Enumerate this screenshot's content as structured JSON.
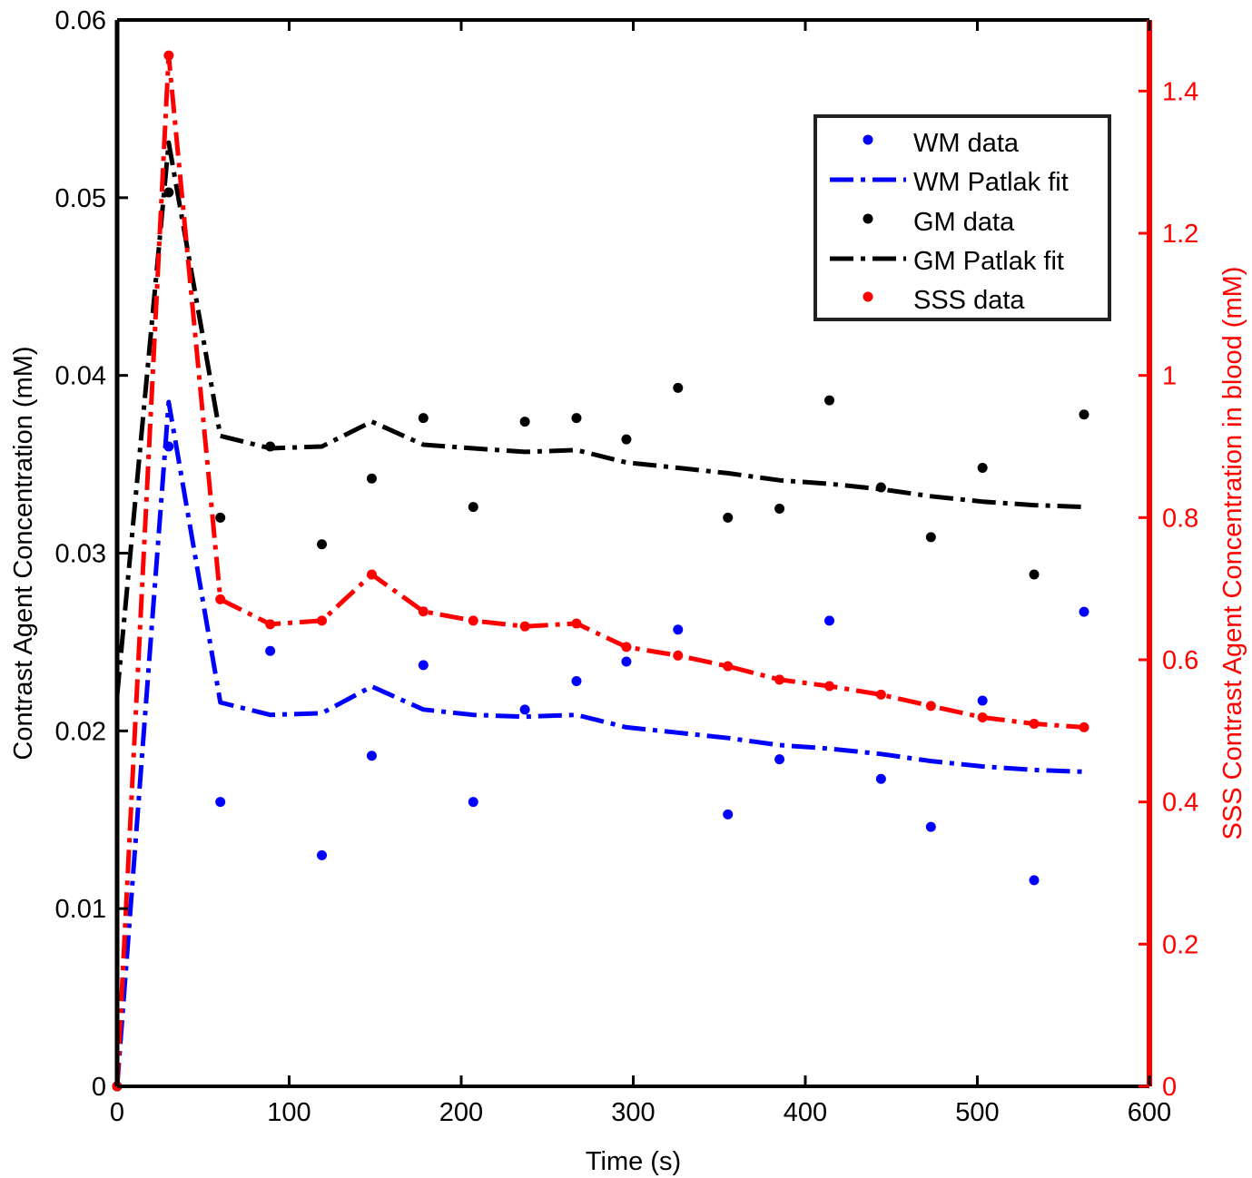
{
  "chart_data": {
    "type": "line",
    "title": "",
    "xlabel": "Time (s)",
    "ylabel_left": "Contrast Agent Concentration (mM)",
    "ylabel_right": "SSS Contrast Agent Concentration in blood (mM)",
    "xlim": [
      0,
      600
    ],
    "ylim_left": [
      0,
      0.06
    ],
    "ylim_right": [
      0,
      1.5
    ],
    "x_ticks": [
      0,
      100,
      200,
      300,
      400,
      500,
      600
    ],
    "y_ticks_left": [
      0,
      0.01,
      0.02,
      0.03,
      0.04,
      0.05,
      0.06
    ],
    "y_ticks_right": [
      0,
      0.2,
      0.4,
      0.6,
      0.8,
      1,
      1.2,
      1.4
    ],
    "grid": false,
    "legend_position": "top-right",
    "colors": {
      "wm": "#0000ff",
      "gm": "#000000",
      "sss": "#ff0000",
      "axis_right": "#ff0000"
    },
    "series": [
      {
        "name": "WM data",
        "kind": "points",
        "axis": "left",
        "color": "#0000ff",
        "x": [
          0,
          30,
          60,
          89,
          119,
          148,
          178,
          207,
          237,
          267,
          296,
          326,
          355,
          385,
          414,
          444,
          473,
          503,
          533,
          562
        ],
        "y": [
          0.0,
          0.036,
          0.016,
          0.0245,
          0.013,
          0.0186,
          0.0237,
          0.016,
          0.0212,
          0.0228,
          0.0239,
          0.0257,
          0.0153,
          0.0184,
          0.0262,
          0.0173,
          0.0146,
          0.0217,
          0.0116,
          0.0267
        ]
      },
      {
        "name": "WM Patlak fit",
        "kind": "line",
        "axis": "left",
        "color": "#0000ff",
        "x": [
          0,
          30,
          60,
          89,
          119,
          148,
          178,
          207,
          237,
          267,
          296,
          326,
          355,
          385,
          414,
          444,
          473,
          503,
          533,
          562
        ],
        "y": [
          0.0,
          0.0385,
          0.0216,
          0.0209,
          0.021,
          0.0225,
          0.0212,
          0.0209,
          0.0208,
          0.0209,
          0.0202,
          0.0199,
          0.0196,
          0.0192,
          0.019,
          0.0187,
          0.0183,
          0.018,
          0.0178,
          0.0177
        ]
      },
      {
        "name": "GM data",
        "kind": "points",
        "axis": "left",
        "color": "#000000",
        "x": [
          0,
          30,
          60,
          89,
          119,
          148,
          178,
          207,
          237,
          267,
          296,
          326,
          355,
          385,
          414,
          444,
          473,
          503,
          533,
          562
        ],
        "y": [
          0.0,
          0.0503,
          0.032,
          0.036,
          0.0305,
          0.0342,
          0.0376,
          0.0326,
          0.0374,
          0.0376,
          0.0364,
          0.0393,
          0.032,
          0.0325,
          0.0386,
          0.0337,
          0.0309,
          0.0348,
          0.0288,
          0.0378
        ]
      },
      {
        "name": "GM Patlak fit",
        "kind": "line",
        "axis": "left",
        "color": "#000000",
        "x": [
          0,
          30,
          60,
          89,
          119,
          148,
          178,
          207,
          237,
          267,
          296,
          326,
          355,
          385,
          414,
          444,
          473,
          503,
          533,
          562
        ],
        "y": [
          0.022,
          0.0531,
          0.0366,
          0.0359,
          0.036,
          0.0374,
          0.0361,
          0.0359,
          0.0357,
          0.0358,
          0.0351,
          0.0348,
          0.0345,
          0.0341,
          0.0339,
          0.0336,
          0.0332,
          0.0329,
          0.0327,
          0.0326
        ]
      },
      {
        "name": "SSS data",
        "kind": "points+line",
        "axis": "right",
        "color": "#ff0000",
        "x": [
          0,
          30,
          60,
          89,
          119,
          148,
          178,
          207,
          237,
          267,
          296,
          326,
          355,
          385,
          414,
          444,
          473,
          503,
          533,
          562
        ],
        "y": [
          0.0,
          1.45,
          0.685,
          0.65,
          0.655,
          0.72,
          0.668,
          0.655,
          0.647,
          0.651,
          0.618,
          0.606,
          0.591,
          0.572,
          0.563,
          0.551,
          0.535,
          0.519,
          0.51,
          0.505
        ]
      }
    ],
    "legend": [
      "WM data",
      "WM Patlak fit",
      "GM data",
      "GM Patlak fit",
      "SSS data"
    ]
  }
}
